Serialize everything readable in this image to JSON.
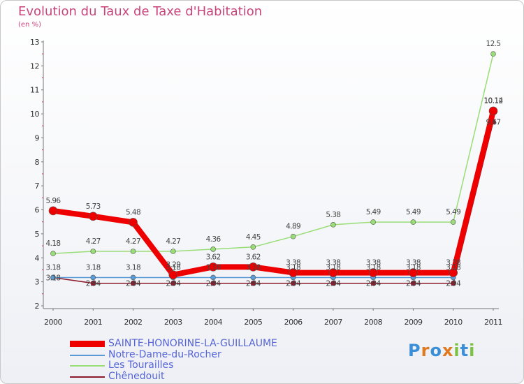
{
  "chart_data": {
    "type": "line",
    "title": "Evolution du Taux de Taxe d'Habitation",
    "subtitle": "(en %)",
    "ylabel": "(en %)",
    "xlabel": "",
    "categories": [
      "2000",
      "2001",
      "2002",
      "2003",
      "2004",
      "2005",
      "2006",
      "2007",
      "2008",
      "2009",
      "2010",
      "2011"
    ],
    "ylim": [
      2,
      13
    ],
    "yticks": [
      2,
      3,
      4,
      5,
      6,
      7,
      8,
      9,
      10,
      11,
      12,
      13
    ],
    "series": [
      {
        "name": "Chênedouit",
        "color": "#8b1a2b",
        "values": [
          3.18,
          2.94,
          2.94,
          2.94,
          2.94,
          2.94,
          2.94,
          2.94,
          2.94,
          2.94,
          2.94,
          9.67
        ],
        "labels": [
          "3.18",
          "2.94",
          "2.94",
          "2.94",
          "2.94",
          "2.94",
          "2.94",
          "2.94",
          "2.94",
          "2.94",
          "2.94",
          "9.67"
        ]
      },
      {
        "name": "Les Tourailles",
        "color": "#99dd77",
        "values": [
          4.18,
          4.27,
          4.27,
          4.27,
          4.36,
          4.45,
          4.89,
          5.38,
          5.49,
          5.49,
          5.49,
          12.5
        ],
        "labels": [
          "4.18",
          "4.27",
          "4.27",
          "4.27",
          "4.36",
          "4.45",
          "4.89",
          "5.38",
          "5.49",
          "5.49",
          "5.49",
          "12.5"
        ]
      },
      {
        "name": "Notre-Dame-du-Rocher",
        "color": "#5b9bd5",
        "values": [
          3.18,
          3.18,
          3.18,
          3.18,
          3.18,
          3.18,
          3.18,
          3.18,
          3.18,
          3.18,
          3.18,
          10.14
        ],
        "labels": [
          "3.18",
          "3.18",
          "3.18",
          "3.18",
          "3.18",
          "3.18",
          "3.18",
          "3.18",
          "3.18",
          "3.18",
          "3.18",
          "10.14"
        ]
      },
      {
        "name": "SAINTE-HONORINE-LA-GUILLAUME",
        "color": "#ee0000",
        "values": [
          5.96,
          5.73,
          5.48,
          3.29,
          3.62,
          3.62,
          3.38,
          3.38,
          3.38,
          3.38,
          3.38,
          10.12
        ],
        "labels": [
          "5.96",
          "5.73",
          "5.48",
          "3.29",
          "3.62",
          "3.62",
          "3.38",
          "3.38",
          "3.38",
          "3.38",
          "3.38",
          "10.12"
        ]
      }
    ],
    "legend": [
      "SAINTE-HONORINE-LA-GUILLAUME",
      "Notre-Dame-du-Rocher",
      "Les Tourailles",
      "Chênedouit"
    ]
  },
  "logo": {
    "text": "Proxiti",
    "letters": [
      "P",
      "r",
      "o",
      "x",
      "i",
      "t",
      "i"
    ],
    "colors": [
      "#3b8fd8",
      "#e07a1f",
      "#3b8fd8",
      "#e07a1f",
      "#7cc242",
      "#3b8fd8",
      "#7cc242"
    ]
  }
}
